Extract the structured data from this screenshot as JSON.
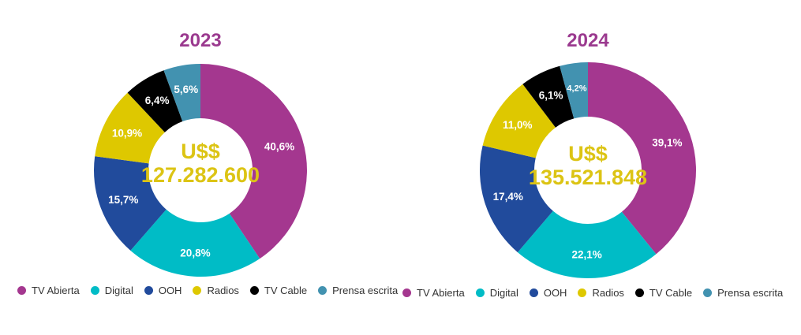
{
  "legend": [
    {
      "label": "TV Abierta",
      "color": "#a4378f"
    },
    {
      "label": "Digital",
      "color": "#00bcc6"
    },
    {
      "label": "OOH",
      "color": "#214b9c"
    },
    {
      "label": "Radios",
      "color": "#dec800"
    },
    {
      "label": "TV Cable",
      "color": "#000000"
    },
    {
      "label": "Prensa escrita",
      "color": "#4292b0"
    }
  ],
  "chart_data": [
    {
      "type": "pie",
      "title": "2023",
      "center_label": "U$$",
      "center_value": "127.282.600",
      "categories": [
        "TV Abierta",
        "Digital",
        "OOH",
        "Radios",
        "TV Cable",
        "Prensa escrita"
      ],
      "values": [
        40.6,
        20.8,
        15.7,
        10.9,
        6.4,
        5.6
      ],
      "labels": [
        "40,6%",
        "20,8%",
        "15,7%",
        "10,9%",
        "6,4%",
        "5,6%"
      ]
    },
    {
      "type": "pie",
      "title": "2024",
      "center_label": "U$$",
      "center_value": "135.521.848",
      "categories": [
        "TV Abierta",
        "Digital",
        "OOH",
        "Radios",
        "TV Cable",
        "Prensa escrita"
      ],
      "values": [
        39.1,
        22.1,
        17.4,
        11.0,
        6.1,
        4.2
      ],
      "labels": [
        "39,1%",
        "22,1%",
        "17,4%",
        "11,0%",
        "6,1%",
        "4,2%"
      ]
    }
  ]
}
